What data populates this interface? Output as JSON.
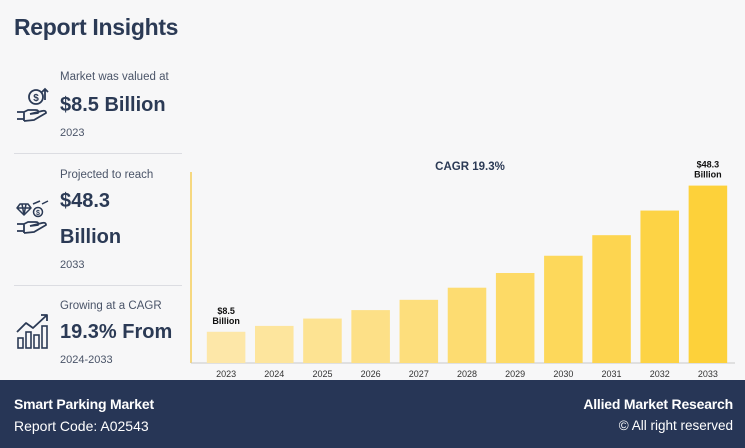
{
  "title": "Report Insights",
  "stats": [
    {
      "label": "Market was valued at",
      "value_lines": [
        "$8.5 Billion"
      ],
      "year": "2023",
      "icon": "money-hand-icon"
    },
    {
      "label": "Projected to reach",
      "value_lines": [
        "$48.3",
        "Billion"
      ],
      "year": "2033",
      "icon": "diamond-hand-icon"
    },
    {
      "label": "Growing at a CAGR",
      "value_lines": [
        "19.3% From"
      ],
      "year": "2024-2033",
      "icon": "growth-bars-icon"
    }
  ],
  "footer": {
    "market": "Smart Parking Market",
    "report_code": "Report Code: A02543",
    "publisher": "Allied Market Research",
    "rights": "© All right reserved"
  },
  "colors": {
    "navy": "#273656",
    "bar_light": "#fde7a8",
    "bar_dark": "#fdd13a",
    "axis": "#f5c431"
  },
  "chart_data": {
    "type": "bar",
    "annotation": "CAGR 19.3%",
    "categories": [
      "2023",
      "2024",
      "2025",
      "2026",
      "2027",
      "2028",
      "2029",
      "2030",
      "2031",
      "2032",
      "2033"
    ],
    "values": [
      8.5,
      10.1,
      12.1,
      14.4,
      17.2,
      20.5,
      24.5,
      29.2,
      34.8,
      41.5,
      48.3
    ],
    "data_labels": {
      "0": [
        "$8.5",
        "Billion"
      ],
      "10": [
        "$48.3",
        "Billion"
      ]
    },
    "ylim": [
      0,
      52
    ],
    "grid": false,
    "legend": "none"
  }
}
